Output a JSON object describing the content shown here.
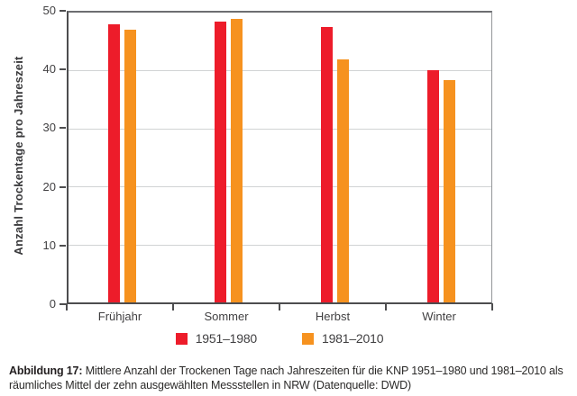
{
  "chart_data": {
    "type": "bar",
    "title": "",
    "xlabel": "",
    "ylabel": "Anzahl Trockentage pro Jahreszeit",
    "categories": [
      "Frühjahr",
      "Sommer",
      "Herbst",
      "Winter"
    ],
    "series": [
      {
        "name": "1951–1980",
        "color": "#ed1c2a",
        "values": [
          48.0,
          48.4,
          47.5,
          40.0
        ]
      },
      {
        "name": "1981–2010",
        "color": "#f6921f",
        "values": [
          47.0,
          48.9,
          42.0,
          38.4
        ]
      }
    ],
    "ylim": [
      0,
      50
    ],
    "yticks": [
      0,
      10,
      20,
      30,
      40,
      50
    ],
    "grid": true,
    "legend_position": "bottom"
  },
  "caption": {
    "label": "Abbildung 17:",
    "text": " Mittlere Anzahl der Trockenen Tage nach Jahreszeiten für die KNP 1951–1980 und 1981–2010 als räumliches Mittel der zehn ausgewählten Messstellen in NRW (Datenquelle: DWD)"
  },
  "colors": {
    "axis": "#4d4d4f",
    "grid": "#d1d3d4",
    "text": "#414042"
  }
}
